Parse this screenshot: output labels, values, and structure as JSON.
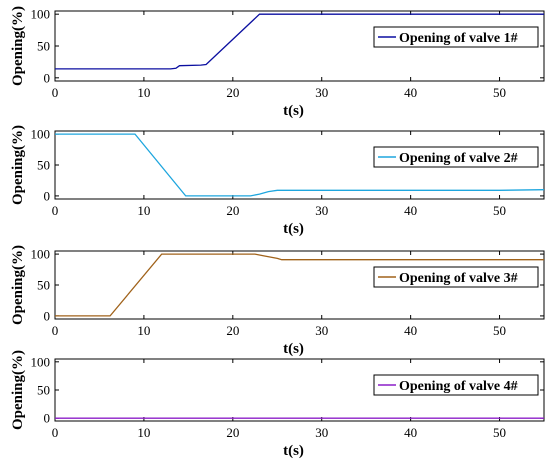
{
  "chart_data": [
    {
      "type": "line",
      "xlabel": "t(s)",
      "ylabel": "Opening(%)",
      "xlim": [
        0,
        55
      ],
      "ylim": [
        -5,
        105
      ],
      "xticks": [
        0,
        10,
        20,
        30,
        40,
        50
      ],
      "yticks": [
        0,
        50,
        100
      ],
      "grid": false,
      "legend_position": "top-right",
      "series": [
        {
          "name": "Opening of valve 1#",
          "color": "#0b0fa0",
          "x": [
            0,
            13,
            13.6,
            14,
            16.4,
            17,
            23,
            55
          ],
          "y": [
            14,
            14,
            15,
            19,
            20,
            21,
            100,
            100
          ]
        }
      ]
    },
    {
      "type": "line",
      "xlabel": "t(s)",
      "ylabel": "Opening(%)",
      "xlim": [
        0,
        55
      ],
      "ylim": [
        -5,
        105
      ],
      "xticks": [
        0,
        10,
        20,
        30,
        40,
        50
      ],
      "yticks": [
        0,
        50,
        100
      ],
      "grid": false,
      "legend_position": "top-right",
      "series": [
        {
          "name": "Opening of valve 2#",
          "color": "#1ea6de",
          "x": [
            0,
            9,
            14.7,
            22,
            23,
            24,
            25,
            50,
            55
          ],
          "y": [
            100,
            100,
            0,
            0,
            3,
            7,
            9,
            9,
            10
          ]
        }
      ]
    },
    {
      "type": "line",
      "xlabel": "t(s)",
      "ylabel": "Opening(%)",
      "xlim": [
        0,
        55
      ],
      "ylim": [
        -5,
        105
      ],
      "xticks": [
        0,
        10,
        20,
        30,
        40,
        50
      ],
      "yticks": [
        0,
        50,
        100
      ],
      "grid": false,
      "legend_position": "top-right",
      "series": [
        {
          "name": "Opening of valve 3#",
          "color": "#a0621a",
          "x": [
            0,
            6.2,
            12,
            22.5,
            23.5,
            25,
            25.5,
            55
          ],
          "y": [
            0,
            0,
            100,
            100,
            97,
            93,
            91,
            91
          ]
        }
      ]
    },
    {
      "type": "line",
      "xlabel": "t(s)",
      "ylabel": "Opening(%)",
      "xlim": [
        0,
        55
      ],
      "ylim": [
        -5,
        105
      ],
      "xticks": [
        0,
        10,
        20,
        30,
        40,
        50
      ],
      "yticks": [
        0,
        50,
        100
      ],
      "grid": false,
      "legend_position": "top-right",
      "series": [
        {
          "name": "Opening of valve 4#",
          "color": "#8c1ec8",
          "x": [
            0,
            55
          ],
          "y": [
            0,
            0
          ]
        }
      ]
    }
  ]
}
